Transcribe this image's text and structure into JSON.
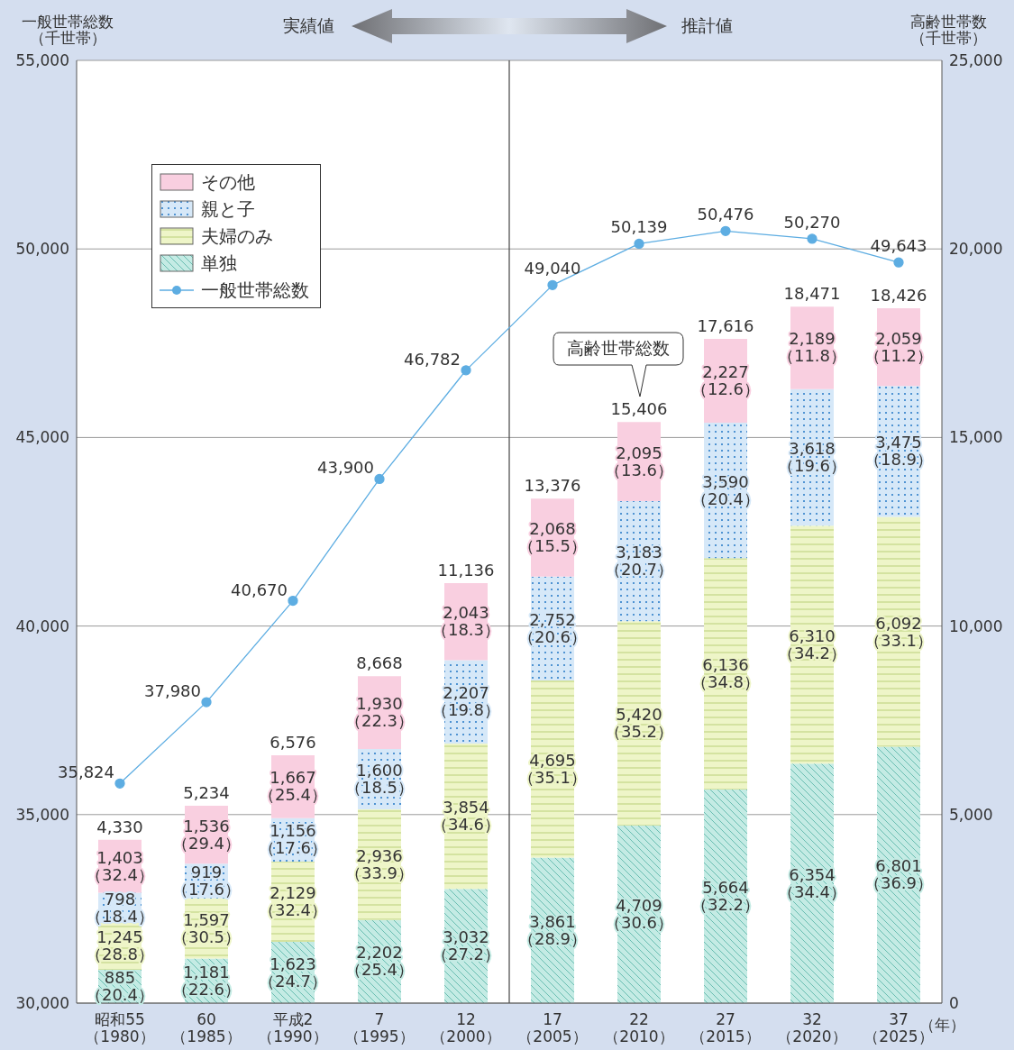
{
  "chart_data": {
    "type": "bar",
    "stacked": true,
    "ylabel": "一般世帯総数（千世帯）",
    "y2label": "高齢世帯数（千世帯）",
    "xlabel": "（年）",
    "annotations": [
      "実績値",
      "推計値",
      "高齢世帯総数"
    ],
    "categories": [
      "昭和55\n（1980）",
      "60\n（1985）",
      "平成2\n（1990）",
      "7\n（1995）",
      "12\n（2000）",
      "17\n（2005）",
      "22\n（2010）",
      "27\n（2015）",
      "32\n（2020）",
      "37\n（2025）"
    ],
    "ylim": [
      30000,
      55000
    ],
    "yticks": [
      {
        "value": 30000,
        "label": "30,000"
      },
      {
        "value": 35000,
        "label": "35,000"
      },
      {
        "value": 40000,
        "label": "40,000"
      },
      {
        "value": 45000,
        "label": "45,000"
      },
      {
        "value": 50000,
        "label": "50,000"
      },
      {
        "value": 55000,
        "label": "55,000"
      }
    ],
    "y2lim": [
      0,
      25000
    ],
    "y2ticks": [
      {
        "value": 0,
        "label": "0"
      },
      {
        "value": 5000,
        "label": "5,000"
      },
      {
        "value": 10000,
        "label": "10,000"
      },
      {
        "value": 15000,
        "label": "15,000"
      },
      {
        "value": 20000,
        "label": "20,000"
      },
      {
        "value": 25000,
        "label": "25,000"
      }
    ],
    "grid": "y",
    "legend": "top left",
    "marker": "circle",
    "ref_lines": [
      {
        "axis": "x",
        "value": "17\n（2005）"
      }
    ],
    "totals": [
      "4,330",
      "5,234",
      "6,576",
      "8,668",
      "11,136",
      "13,376",
      "15,406",
      "17,616",
      "18,471",
      "18,426"
    ],
    "series": [
      {
        "name": "単独",
        "axis": "y2",
        "color": "#c4ebe4",
        "values": [
          885,
          1181,
          1623,
          2202,
          3032,
          3861,
          4709,
          5664,
          6354,
          6801
        ],
        "value_labels": [
          "885\n（20.4）",
          "1,181\n（22.6）",
          "1,623\n（24.7）",
          "2,202\n（25.4）",
          "3,032\n（27.2）",
          "3,861\n（28.9）",
          "4,709\n（30.6）",
          "5,664\n（32.2）",
          "6,354\n（34.4）",
          "6,801\n（36.9）"
        ]
      },
      {
        "name": "夫婦のみ",
        "axis": "y2",
        "color": "#eef5c8",
        "values": [
          1245,
          1597,
          2129,
          2936,
          3854,
          4695,
          5420,
          6136,
          6310,
          6092
        ],
        "value_labels": [
          "1,245\n（28.8）",
          "1,597\n（30.5）",
          "2,129\n（32.4）",
          "2,936\n（33.9）",
          "3,854\n（34.6）",
          "4,695\n（35.1）",
          "5,420\n（35.2）",
          "6,136\n（34.8）",
          "6,310\n（34.2）",
          "6,092\n（33.1）"
        ]
      },
      {
        "name": "親と子",
        "axis": "y2",
        "color": "#d6e8f8",
        "values": [
          798,
          919,
          1156,
          1600,
          2207,
          2752,
          3183,
          3590,
          3618,
          3475
        ],
        "value_labels": [
          "798\n（18.4）",
          "919\n（17.6）",
          "1,156\n（17.6）",
          "1,600\n（18.5）",
          "2,207\n（19.8）",
          "2,752\n（20.6）",
          "3,183\n（20.7）",
          "3,590\n（20.4）",
          "3,618\n（19.6）",
          "3,475\n（18.9）"
        ]
      },
      {
        "name": "その他",
        "axis": "y2",
        "color": "#f9cfe0",
        "values": [
          1403,
          1536,
          1667,
          1930,
          2043,
          2068,
          2095,
          2227,
          2189,
          2059
        ],
        "value_labels": [
          "1,403\n（32.4）",
          "1,536\n（29.4）",
          "1,667\n（25.4）",
          "1,930\n（22.3）",
          "2,043\n（18.3）",
          "2,068\n（15.5）",
          "2,095\n（13.6）",
          "2,227\n（12.6）",
          "2,189\n（11.8）",
          "2,059\n（11.2）"
        ]
      },
      {
        "name": "一般世帯総数",
        "type": "line",
        "axis": "y",
        "color": "#5dade2",
        "values": [
          35824,
          37980,
          40670,
          43900,
          46782,
          49040,
          50139,
          50476,
          50270,
          49643
        ],
        "value_labels": [
          "35,824",
          "37,980",
          "40,670",
          "43,900",
          "46,782",
          "49,040",
          "50,139",
          "50,476",
          "50,270",
          "49,643"
        ]
      }
    ]
  }
}
